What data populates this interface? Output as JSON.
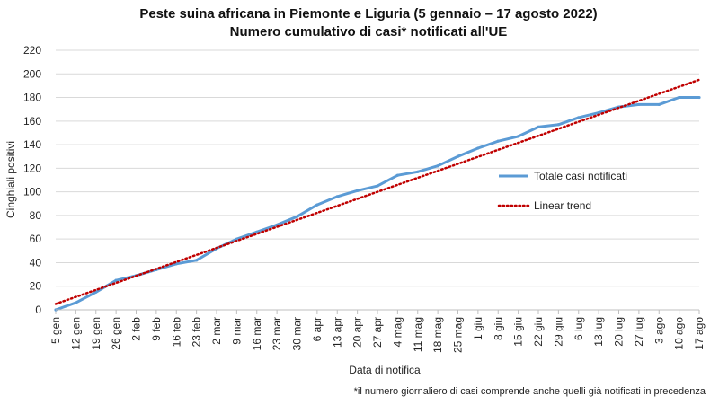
{
  "chart_data": {
    "type": "line",
    "title": "Peste suina africana in Piemonte e Liguria (5 gennaio – 17 agosto 2022)",
    "subtitle": "Numero cumulativo di casi* notificati all'UE",
    "xlabel": "Data di notifica",
    "ylabel": "Cinghiali positivi",
    "ylim": [
      0,
      220
    ],
    "yticks": [
      0,
      20,
      40,
      60,
      80,
      100,
      120,
      140,
      160,
      180,
      200,
      220
    ],
    "categories": [
      "5 gen",
      "12 gen",
      "19 gen",
      "26 gen",
      "2 feb",
      "9 feb",
      "16 feb",
      "23 feb",
      "2 mar",
      "9 mar",
      "16 mar",
      "23 mar",
      "30 mar",
      "6 apr",
      "13 apr",
      "20 apr",
      "27 apr",
      "4 mag",
      "11 mag",
      "18 mag",
      "25 mag",
      "1 giu",
      "8 giu",
      "15 giu",
      "22 giu",
      "29 giu",
      "6 lug",
      "13 lug",
      "20 lug",
      "27 lug",
      "3 ago",
      "10 ago",
      "17 ago"
    ],
    "series": [
      {
        "name": "Totale casi notificati",
        "color": "#5b9bd5",
        "style": "solid",
        "values": [
          0,
          6,
          15,
          25,
          29,
          34,
          39,
          42,
          52,
          60,
          66,
          72,
          79,
          89,
          96,
          101,
          105,
          114,
          117,
          122,
          130,
          137,
          143,
          147,
          155,
          157,
          163,
          167,
          172,
          174,
          174,
          180,
          180
        ]
      },
      {
        "name": "Linear trend",
        "color": "#c00000",
        "style": "dotted",
        "start": 5,
        "end": 195
      }
    ],
    "legend_position": "right",
    "footnote": "*il numero giornaliero di casi comprende anche quelli già notificati in precedenza"
  }
}
